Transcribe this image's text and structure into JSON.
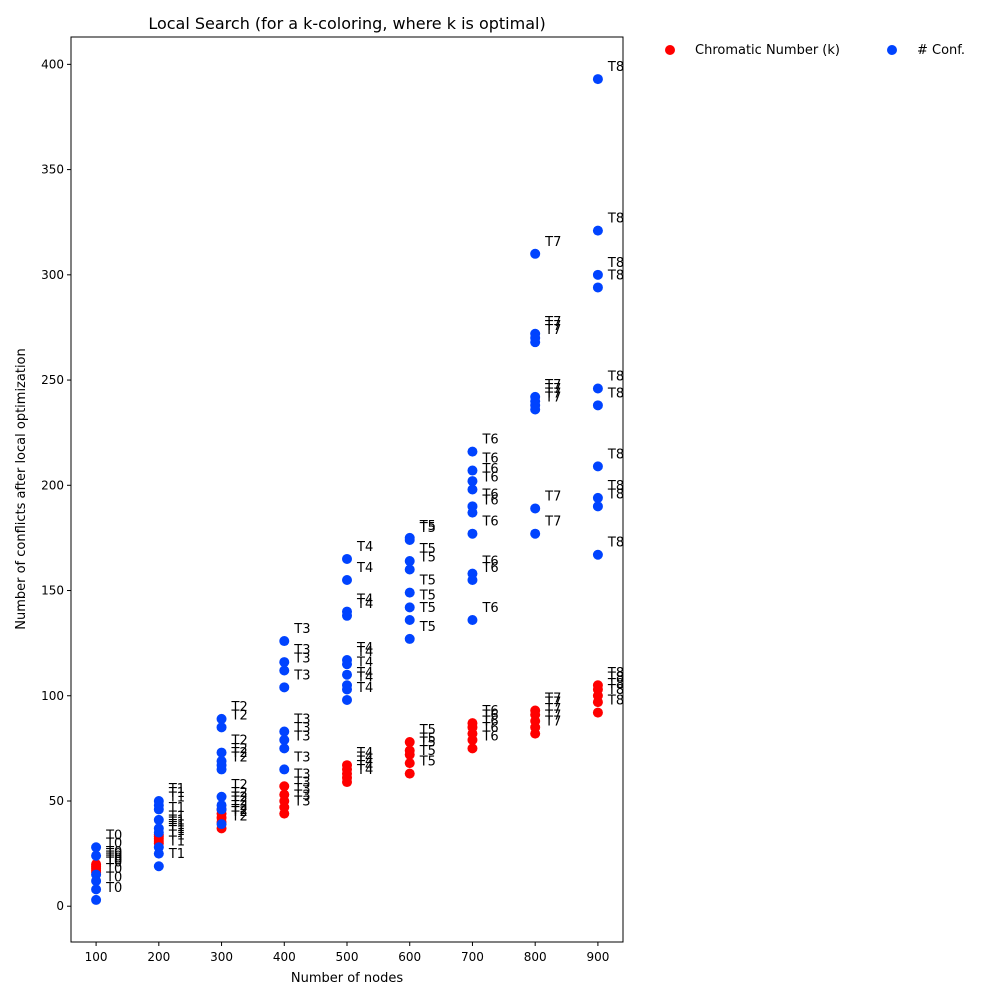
{
  "chart_data": {
    "type": "scatter",
    "title": "Local Search (for a k-coloring, where k is optimal)",
    "xlabel": "Number of nodes",
    "ylabel": "Number of conflicts after local optimization",
    "xlim": [
      60,
      940
    ],
    "ylim": [
      -17,
      413
    ],
    "xticks": [
      100,
      200,
      300,
      400,
      500,
      600,
      700,
      800,
      900
    ],
    "yticks": [
      0,
      50,
      100,
      150,
      200,
      250,
      300,
      350,
      400
    ],
    "grid": false,
    "legend": "outside-top-right",
    "series": [
      {
        "name": "Chromatic Number (k)",
        "color": "#ff0000",
        "points": [
          {
            "x": 100,
            "y": 20,
            "label": "T0"
          },
          {
            "x": 100,
            "y": 19,
            "label": "T0"
          },
          {
            "x": 100,
            "y": 18,
            "label": "T0"
          },
          {
            "x": 100,
            "y": 17,
            "label": "T0"
          },
          {
            "x": 100,
            "y": 16,
            "label": "T0"
          },
          {
            "x": 200,
            "y": 34,
            "label": "T1"
          },
          {
            "x": 200,
            "y": 33,
            "label": "T1"
          },
          {
            "x": 200,
            "y": 32,
            "label": "T1"
          },
          {
            "x": 200,
            "y": 31,
            "label": "T1"
          },
          {
            "x": 200,
            "y": 30,
            "label": "T1"
          },
          {
            "x": 300,
            "y": 46,
            "label": "T2"
          },
          {
            "x": 300,
            "y": 44,
            "label": "T2"
          },
          {
            "x": 300,
            "y": 42,
            "label": "T2"
          },
          {
            "x": 300,
            "y": 40,
            "label": "T2"
          },
          {
            "x": 300,
            "y": 37,
            "label": "T2"
          },
          {
            "x": 400,
            "y": 57,
            "label": "T3"
          },
          {
            "x": 400,
            "y": 53,
            "label": "T3"
          },
          {
            "x": 400,
            "y": 50,
            "label": "T3"
          },
          {
            "x": 400,
            "y": 47,
            "label": "T3"
          },
          {
            "x": 400,
            "y": 44,
            "label": "T3"
          },
          {
            "x": 500,
            "y": 67,
            "label": "T4"
          },
          {
            "x": 500,
            "y": 65,
            "label": "T4"
          },
          {
            "x": 500,
            "y": 63,
            "label": "T4"
          },
          {
            "x": 500,
            "y": 61,
            "label": "T4"
          },
          {
            "x": 500,
            "y": 59,
            "label": "T4"
          },
          {
            "x": 600,
            "y": 78,
            "label": "T5"
          },
          {
            "x": 600,
            "y": 74,
            "label": "T5"
          },
          {
            "x": 600,
            "y": 72,
            "label": "T5"
          },
          {
            "x": 600,
            "y": 68,
            "label": "T5"
          },
          {
            "x": 600,
            "y": 63,
            "label": "T5"
          },
          {
            "x": 700,
            "y": 87,
            "label": "T6"
          },
          {
            "x": 700,
            "y": 85,
            "label": "T6"
          },
          {
            "x": 700,
            "y": 82,
            "label": "T6"
          },
          {
            "x": 700,
            "y": 79,
            "label": "T6"
          },
          {
            "x": 700,
            "y": 75,
            "label": "T6"
          },
          {
            "x": 800,
            "y": 93,
            "label": "T7"
          },
          {
            "x": 800,
            "y": 91,
            "label": "T7"
          },
          {
            "x": 800,
            "y": 88,
            "label": "T7"
          },
          {
            "x": 800,
            "y": 85,
            "label": "T7"
          },
          {
            "x": 800,
            "y": 82,
            "label": "T7"
          },
          {
            "x": 900,
            "y": 105,
            "label": "T8"
          },
          {
            "x": 900,
            "y": 103,
            "label": "T8"
          },
          {
            "x": 900,
            "y": 100,
            "label": "T8"
          },
          {
            "x": 900,
            "y": 97,
            "label": "T8"
          },
          {
            "x": 900,
            "y": 92,
            "label": "T8"
          }
        ]
      },
      {
        "name": "# Conf.",
        "color": "#0043ff",
        "points": [
          {
            "x": 100,
            "y": 28,
            "label": "T0"
          },
          {
            "x": 100,
            "y": 24,
            "label": "T0"
          },
          {
            "x": 100,
            "y": 15,
            "label": "T0"
          },
          {
            "x": 100,
            "y": 12,
            "label": "T0"
          },
          {
            "x": 100,
            "y": 8,
            "label": "T0"
          },
          {
            "x": 100,
            "y": 3,
            "label": "T0"
          },
          {
            "x": 200,
            "y": 50,
            "label": "T1"
          },
          {
            "x": 200,
            "y": 48,
            "label": "T1"
          },
          {
            "x": 200,
            "y": 46,
            "label": "T1"
          },
          {
            "x": 200,
            "y": 41,
            "label": "T1"
          },
          {
            "x": 200,
            "y": 37,
            "label": "T1"
          },
          {
            "x": 200,
            "y": 35,
            "label": "T1"
          },
          {
            "x": 200,
            "y": 28,
            "label": "T1"
          },
          {
            "x": 200,
            "y": 25,
            "label": "T1"
          },
          {
            "x": 200,
            "y": 19,
            "label": "T1"
          },
          {
            "x": 300,
            "y": 89,
            "label": "T2"
          },
          {
            "x": 300,
            "y": 85,
            "label": "T2"
          },
          {
            "x": 300,
            "y": 73,
            "label": "T2"
          },
          {
            "x": 300,
            "y": 69,
            "label": "T2"
          },
          {
            "x": 300,
            "y": 67,
            "label": "T2"
          },
          {
            "x": 300,
            "y": 65,
            "label": "T2"
          },
          {
            "x": 300,
            "y": 52,
            "label": "T2"
          },
          {
            "x": 300,
            "y": 48,
            "label": "T2"
          },
          {
            "x": 300,
            "y": 46,
            "label": "T2"
          },
          {
            "x": 300,
            "y": 39,
            "label": "T2"
          },
          {
            "x": 400,
            "y": 126,
            "label": "T3"
          },
          {
            "x": 400,
            "y": 116,
            "label": "T3"
          },
          {
            "x": 400,
            "y": 112,
            "label": "T3"
          },
          {
            "x": 400,
            "y": 104,
            "label": "T3"
          },
          {
            "x": 400,
            "y": 83,
            "label": "T3"
          },
          {
            "x": 400,
            "y": 79,
            "label": "T3"
          },
          {
            "x": 400,
            "y": 75,
            "label": "T3"
          },
          {
            "x": 400,
            "y": 65,
            "label": "T3"
          },
          {
            "x": 500,
            "y": 165,
            "label": "T4"
          },
          {
            "x": 500,
            "y": 155,
            "label": "T4"
          },
          {
            "x": 500,
            "y": 140,
            "label": "T4"
          },
          {
            "x": 500,
            "y": 138,
            "label": "T4"
          },
          {
            "x": 500,
            "y": 117,
            "label": "T4"
          },
          {
            "x": 500,
            "y": 115,
            "label": "T4"
          },
          {
            "x": 500,
            "y": 110,
            "label": "T4"
          },
          {
            "x": 500,
            "y": 105,
            "label": "T4"
          },
          {
            "x": 500,
            "y": 103,
            "label": "T4"
          },
          {
            "x": 500,
            "y": 98,
            "label": "T4"
          },
          {
            "x": 600,
            "y": 175,
            "label": "T5"
          },
          {
            "x": 600,
            "y": 174,
            "label": "T5"
          },
          {
            "x": 600,
            "y": 164,
            "label": "T5"
          },
          {
            "x": 600,
            "y": 160,
            "label": "T5"
          },
          {
            "x": 600,
            "y": 149,
            "label": "T5"
          },
          {
            "x": 600,
            "y": 142,
            "label": "T5"
          },
          {
            "x": 600,
            "y": 136,
            "label": "T5"
          },
          {
            "x": 600,
            "y": 127,
            "label": "T5"
          },
          {
            "x": 700,
            "y": 216,
            "label": "T6"
          },
          {
            "x": 700,
            "y": 207,
            "label": "T6"
          },
          {
            "x": 700,
            "y": 202,
            "label": "T6"
          },
          {
            "x": 700,
            "y": 198,
            "label": "T6"
          },
          {
            "x": 700,
            "y": 190,
            "label": "T6"
          },
          {
            "x": 700,
            "y": 187,
            "label": "T6"
          },
          {
            "x": 700,
            "y": 177,
            "label": "T6"
          },
          {
            "x": 700,
            "y": 158,
            "label": "T6"
          },
          {
            "x": 700,
            "y": 155,
            "label": "T6"
          },
          {
            "x": 700,
            "y": 136,
            "label": "T6"
          },
          {
            "x": 800,
            "y": 310,
            "label": "T7"
          },
          {
            "x": 800,
            "y": 272,
            "label": "T7"
          },
          {
            "x": 800,
            "y": 270,
            "label": "T7"
          },
          {
            "x": 800,
            "y": 268,
            "label": "T7"
          },
          {
            "x": 800,
            "y": 242,
            "label": "T7"
          },
          {
            "x": 800,
            "y": 240,
            "label": "T7"
          },
          {
            "x": 800,
            "y": 238,
            "label": "T7"
          },
          {
            "x": 800,
            "y": 236,
            "label": "T7"
          },
          {
            "x": 800,
            "y": 189,
            "label": "T7"
          },
          {
            "x": 800,
            "y": 177,
            "label": "T7"
          },
          {
            "x": 900,
            "y": 393,
            "label": "T8"
          },
          {
            "x": 900,
            "y": 321,
            "label": "T8"
          },
          {
            "x": 900,
            "y": 300,
            "label": "T8"
          },
          {
            "x": 900,
            "y": 294,
            "label": "T8"
          },
          {
            "x": 900,
            "y": 246,
            "label": "T8"
          },
          {
            "x": 900,
            "y": 238,
            "label": "T8"
          },
          {
            "x": 900,
            "y": 209,
            "label": "T8"
          },
          {
            "x": 900,
            "y": 194,
            "label": "T8"
          },
          {
            "x": 900,
            "y": 190,
            "label": "T8"
          },
          {
            "x": 900,
            "y": 167,
            "label": "T8"
          }
        ]
      }
    ]
  }
}
